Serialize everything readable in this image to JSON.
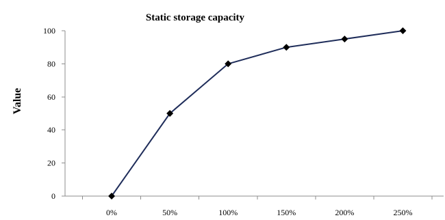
{
  "chart_data": {
    "type": "line",
    "title": "Static storage capacity",
    "xlabel": "",
    "ylabel": "Value",
    "categories": [
      "0%",
      "50%",
      "100%",
      "150%",
      "200%",
      "250%"
    ],
    "series": [
      {
        "values": [
          0,
          50,
          80,
          90,
          95,
          100
        ]
      }
    ],
    "ylim": [
      0,
      100
    ],
    "yticks": [
      "0",
      "20",
      "40",
      "60",
      "80",
      "100"
    ],
    "grid": false,
    "legend": "none",
    "marker": "diamond",
    "line_color": "#1f2d5a",
    "marker_color": "#000000"
  }
}
